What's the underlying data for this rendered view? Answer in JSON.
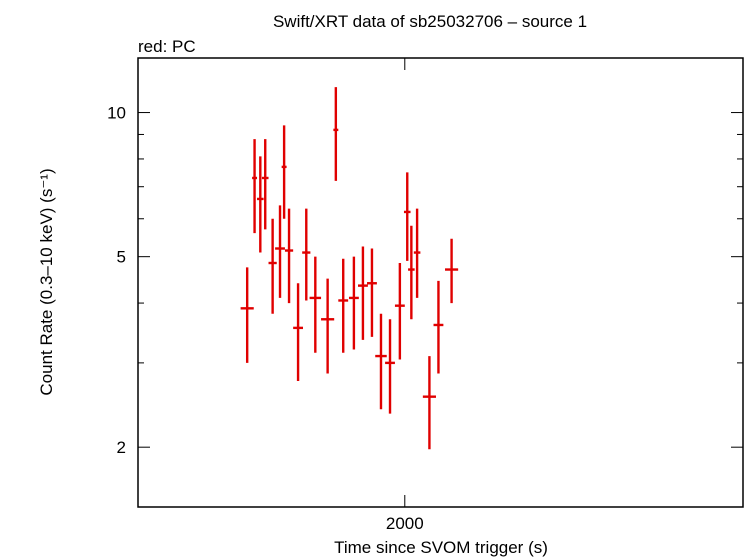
{
  "chart_data": {
    "type": "scatter",
    "title": "Swift/XRT data of sb25032706 – source 1",
    "subtitle": "red: PC",
    "xlabel": "Time since SVOM trigger (s)",
    "ylabel": "Count Rate (0.3–10 keV) (s⁻¹)",
    "y_scale": "log",
    "xlim": [
      1675,
      2412
    ],
    "ylim": [
      1.5,
      13
    ],
    "x_tick_labels": [
      "2000"
    ],
    "y_tick_labels": [
      "2",
      "5",
      "10"
    ],
    "grid": false,
    "series": [
      {
        "color": "#e00000",
        "points": [
          {
            "x": 1808,
            "xerr": 8,
            "y": 3.9,
            "ylo": 3.0,
            "yhi": 4.75
          },
          {
            "x": 1817,
            "xerr": 3,
            "y": 7.3,
            "ylo": 5.6,
            "yhi": 8.8
          },
          {
            "x": 1824,
            "xerr": 4,
            "y": 6.6,
            "ylo": 5.1,
            "yhi": 8.1
          },
          {
            "x": 1830,
            "xerr": 4,
            "y": 7.3,
            "ylo": 5.7,
            "yhi": 8.8
          },
          {
            "x": 1839,
            "xerr": 5,
            "y": 4.85,
            "ylo": 3.8,
            "yhi": 6.0
          },
          {
            "x": 1848,
            "xerr": 6,
            "y": 5.2,
            "ylo": 4.1,
            "yhi": 6.4
          },
          {
            "x": 1853,
            "xerr": 3,
            "y": 7.7,
            "ylo": 6.0,
            "yhi": 9.4
          },
          {
            "x": 1859,
            "xerr": 5,
            "y": 5.15,
            "ylo": 4.0,
            "yhi": 6.3
          },
          {
            "x": 1870,
            "xerr": 6,
            "y": 3.55,
            "ylo": 2.75,
            "yhi": 4.4
          },
          {
            "x": 1880,
            "xerr": 5,
            "y": 5.1,
            "ylo": 4.05,
            "yhi": 6.3
          },
          {
            "x": 1891,
            "xerr": 7,
            "y": 4.1,
            "ylo": 3.15,
            "yhi": 5.0
          },
          {
            "x": 1906,
            "xerr": 8,
            "y": 3.7,
            "ylo": 2.85,
            "yhi": 4.5
          },
          {
            "x": 1916,
            "xerr": 3,
            "y": 9.2,
            "ylo": 7.2,
            "yhi": 11.3
          },
          {
            "x": 1925,
            "xerr": 6,
            "y": 4.05,
            "ylo": 3.15,
            "yhi": 4.95
          },
          {
            "x": 1938,
            "xerr": 6,
            "y": 4.1,
            "ylo": 3.2,
            "yhi": 5.0
          },
          {
            "x": 1949,
            "xerr": 6,
            "y": 4.35,
            "ylo": 3.35,
            "yhi": 5.25
          },
          {
            "x": 1960,
            "xerr": 6,
            "y": 4.4,
            "ylo": 3.4,
            "yhi": 5.2
          },
          {
            "x": 1971,
            "xerr": 7,
            "y": 3.1,
            "ylo": 2.4,
            "yhi": 3.8
          },
          {
            "x": 1982,
            "xerr": 6,
            "y": 3.0,
            "ylo": 2.35,
            "yhi": 3.7
          },
          {
            "x": 1994,
            "xerr": 6,
            "y": 3.95,
            "ylo": 3.05,
            "yhi": 4.85
          },
          {
            "x": 2003,
            "xerr": 4,
            "y": 6.2,
            "ylo": 4.9,
            "yhi": 7.5
          },
          {
            "x": 2008,
            "xerr": 4,
            "y": 4.7,
            "ylo": 3.7,
            "yhi": 5.8
          },
          {
            "x": 2015,
            "xerr": 4,
            "y": 5.1,
            "ylo": 4.1,
            "yhi": 6.3
          },
          {
            "x": 2030,
            "xerr": 8,
            "y": 2.55,
            "ylo": 1.98,
            "yhi": 3.1
          },
          {
            "x": 2041,
            "xerr": 6,
            "y": 3.6,
            "ylo": 2.85,
            "yhi": 4.45
          },
          {
            "x": 2057,
            "xerr": 8,
            "y": 4.7,
            "ylo": 4.0,
            "yhi": 5.45
          }
        ]
      }
    ]
  }
}
